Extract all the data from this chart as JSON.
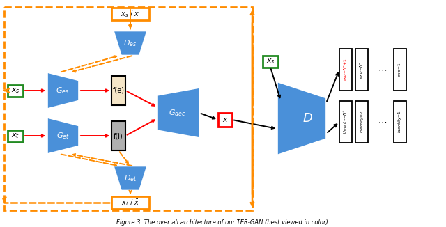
{
  "fig_width": 6.4,
  "fig_height": 3.26,
  "dpi": 100,
  "blue": "#4A90D9",
  "orange": "#FF8C00",
  "red": "#FF0000",
  "green": "#228B22",
  "black": "#000000",
  "white": "#FFFFFF",
  "beige": "#F5E6C8",
  "gray": "#B0B0B0",
  "caption": "Figure 3. The over all architecture of our TER-GAN (best viewed in color)."
}
